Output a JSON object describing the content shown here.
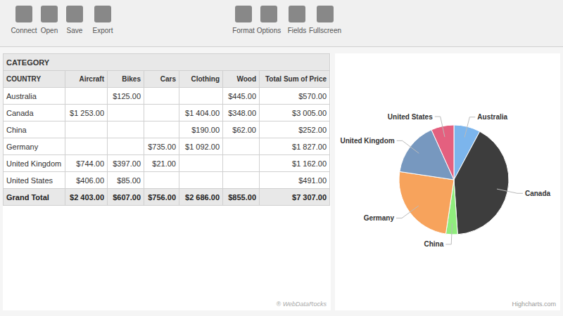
{
  "chart_data": [
    {
      "type": "pie",
      "categories": [
        "Australia",
        "Canada",
        "China",
        "Germany",
        "United Kingdom",
        "United States"
      ],
      "values": [
        570,
        3005,
        252,
        1827,
        1162,
        491
      ],
      "colors": [
        "#7cb5ec",
        "#3d3d3d",
        "#90ed7d",
        "#f7a35c",
        "#7798bf",
        "#e4607f"
      ],
      "annotations": [
        "Highcharts.com"
      ]
    },
    {
      "type": "table",
      "title": "CATEGORY",
      "x_label": "COUNTRY",
      "categories": [
        "Australia",
        "Canada",
        "China",
        "Germany",
        "United Kingdom",
        "United States",
        "Grand Total"
      ],
      "series": [
        {
          "name": "Aircraft",
          "values": [
            null,
            1253,
            null,
            null,
            744,
            406,
            2403
          ],
          "value_labels": [
            null,
            "$1 253.00",
            null,
            null,
            "$744.00",
            "$406.00",
            "$2 403.00"
          ]
        },
        {
          "name": "Bikes",
          "values": [
            125,
            null,
            null,
            null,
            397,
            85,
            607
          ],
          "value_labels": [
            "$125.00",
            null,
            null,
            null,
            "$397.00",
            "$85.00",
            "$607.00"
          ]
        },
        {
          "name": "Cars",
          "values": [
            null,
            null,
            null,
            735,
            21,
            null,
            756
          ],
          "value_labels": [
            null,
            null,
            null,
            "$735.00",
            "$21.00",
            null,
            "$756.00"
          ]
        },
        {
          "name": "Clothing",
          "values": [
            null,
            1404,
            190,
            1092,
            null,
            null,
            2686
          ],
          "value_labels": [
            null,
            "$1 404.00",
            "$190.00",
            "$1 092.00",
            null,
            null,
            "$2 686.00"
          ]
        },
        {
          "name": "Wood",
          "values": [
            445,
            348,
            62,
            null,
            null,
            null,
            855
          ],
          "value_labels": [
            "$445.00",
            "$348.00",
            "$62.00",
            null,
            null,
            null,
            "$855.00"
          ]
        },
        {
          "name": "Total Sum of Price",
          "values": [
            570,
            3005,
            252,
            1827,
            1162,
            491,
            7307
          ],
          "value_labels": [
            "$570.00",
            "$3 005.00",
            "$252.00",
            "$1 827.00",
            "$1 162.00",
            "$491.00",
            "$7 307.00"
          ]
        }
      ],
      "data_labels": true,
      "annotations": [
        "Connect",
        "Open",
        "Save",
        "Export",
        "Format",
        "Options",
        "Fields",
        "Fullscreen",
        "® WebDataRocks"
      ]
    }
  ]
}
